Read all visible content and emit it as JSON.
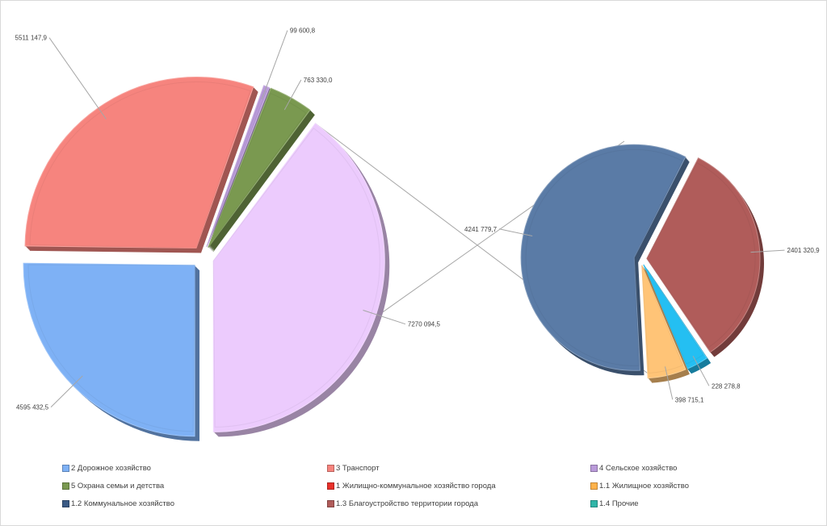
{
  "chart_data": {
    "type": "pie",
    "variant": "bar-of-pie (pie of pie), exploded 3D",
    "title": "",
    "primary_pie": {
      "slices": [
        {
          "name": "2 Дорожное хозяйство",
          "value": 4595432.5,
          "label": "4595 432,5",
          "color": "#7eb1f5"
        },
        {
          "name": "3 Транспорт",
          "value": 5511147.9,
          "label": "5511 147,9",
          "color": "#f6847e"
        },
        {
          "name": "4 Сельское хозяйство",
          "value": 99600.8,
          "label": "99 600,8",
          "color": "#b99ad9"
        },
        {
          "name": "5 Охрана семьи и детства",
          "value": 763330.0,
          "label": "763 330,0",
          "color": "#7a9950"
        },
        {
          "name": "1 Жилищно-коммунальное  хозяйство города",
          "value": 7270094.5,
          "label": "7270 094,5",
          "color": "#eccbfd"
        }
      ]
    },
    "secondary_pie": {
      "parent": "1 Жилищно-коммунальное  хозяйство города",
      "slices": [
        {
          "name": "1.2 Коммунальное хозяйство",
          "value": 4241779.7,
          "label": "4241 779,7",
          "color": "#5a7ba6"
        },
        {
          "name": "1.3 Благоустройство территории города",
          "value": 2401320.9,
          "label": "2401 320,9",
          "color": "#b05c5a"
        },
        {
          "name": "1.4 Прочие",
          "value": 228278.8,
          "label": "228 278,8",
          "color": "#24bff2"
        },
        {
          "name": "1.1 Жилищное хозяйство",
          "value": 398715.1,
          "label": "398 715,1",
          "color": "#ffc477"
        }
      ]
    },
    "legend": {
      "placement": "bottom",
      "entries": [
        {
          "name": "2 Дорожное хозяйство",
          "color": "#7eb1f5"
        },
        {
          "name": "3 Транспорт",
          "color": "#f6847e"
        },
        {
          "name": "4 Сельское хозяйство",
          "color": "#b99ad9"
        },
        {
          "name": "5 Охрана семьи и детства",
          "color": "#7a9950"
        },
        {
          "name": "1 Жилищно-коммунальное  хозяйство города",
          "color": "#e8312a"
        },
        {
          "name": "1.1 Жилищное хозяйство",
          "color": "#ffb24a"
        },
        {
          "name": "1.2 Коммунальное хозяйство",
          "color": "#3a5a85"
        },
        {
          "name": "1.3 Благоустройство территории города",
          "color": "#b05c5a"
        },
        {
          "name": "1.4 Прочие",
          "color": "#2fb5a8"
        }
      ]
    }
  }
}
